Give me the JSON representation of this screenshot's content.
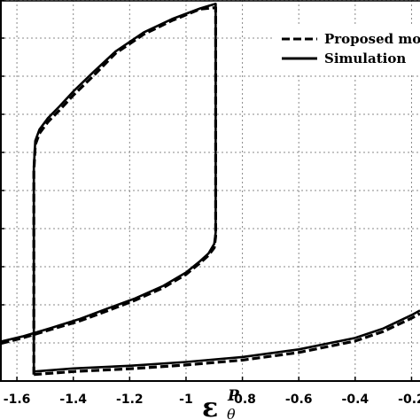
{
  "chart_data": {
    "type": "line",
    "title": "",
    "xlabel": {
      "symbol": "ε",
      "superscript": "P",
      "subscript": "θ"
    },
    "ylabel": "",
    "xlim": [
      -1.66,
      -0.17
    ],
    "ylim": [
      0,
      1
    ],
    "x_ticks": [
      -1.6,
      -1.4,
      -1.2,
      -1,
      -0.8,
      -0.6,
      -0.4,
      -0.2
    ],
    "x_tick_labels": [
      "-1.6",
      "-1.4",
      "-1.2",
      "-1",
      "-0.8",
      "-0.6",
      "-0.4",
      "-0.2"
    ],
    "y_ticks": [
      0.0,
      0.1,
      0.2,
      0.3,
      0.4,
      0.5,
      0.6,
      0.7,
      0.8,
      0.9,
      1.0
    ],
    "grid": true,
    "legend_position": "top-right",
    "series": [
      {
        "name": "Proposed mo",
        "style": "dashed",
        "x": [
          -1.54,
          -1.54,
          -1.535,
          -1.52,
          -1.49,
          -1.45,
          -1.4,
          -1.33,
          -1.25,
          -1.15,
          -1.05,
          -0.95,
          -0.895,
          -0.895,
          -0.9,
          -0.92,
          -0.95,
          -1.0,
          -1.08,
          -1.18,
          -1.28,
          -1.38,
          -1.48,
          -1.58,
          -1.66
        ],
        "y": [
          0.017,
          0.55,
          0.62,
          0.65,
          0.68,
          0.71,
          0.75,
          0.8,
          0.86,
          0.91,
          0.946,
          0.976,
          0.98,
          0.38,
          0.35,
          0.33,
          0.31,
          0.28,
          0.245,
          0.212,
          0.184,
          0.157,
          0.135,
          0.113,
          0.098
        ]
      },
      {
        "name": "Simulation",
        "style": "solid",
        "x": [
          -1.54,
          -1.54,
          -1.535,
          -1.52,
          -1.49,
          -1.45,
          -1.4,
          -1.33,
          -1.25,
          -1.15,
          -1.05,
          -0.95,
          -0.895,
          -0.895,
          -0.9,
          -0.92,
          -0.95,
          -1.0,
          -1.08,
          -1.18,
          -1.28,
          -1.38,
          -1.48,
          -1.58,
          -1.66
        ],
        "y": [
          0.025,
          0.56,
          0.63,
          0.66,
          0.69,
          0.72,
          0.76,
          0.81,
          0.865,
          0.915,
          0.95,
          0.978,
          0.99,
          0.39,
          0.36,
          0.335,
          0.315,
          0.285,
          0.25,
          0.217,
          0.19,
          0.162,
          0.139,
          0.117,
          0.103
        ]
      },
      {
        "name": "",
        "style": "dashed",
        "x": [
          -1.54,
          -1.4,
          -1.2,
          -1.0,
          -0.8,
          -0.6,
          -0.4,
          -0.3,
          -0.2,
          -0.17
        ],
        "y": [
          0.017,
          0.025,
          0.032,
          0.042,
          0.055,
          0.075,
          0.105,
          0.13,
          0.165,
          0.177
        ]
      },
      {
        "name": "",
        "style": "solid",
        "x": [
          -1.54,
          -1.4,
          -1.2,
          -1.0,
          -0.8,
          -0.6,
          -0.4,
          -0.3,
          -0.2,
          -0.17
        ],
        "y": [
          0.025,
          0.033,
          0.04,
          0.05,
          0.063,
          0.083,
          0.113,
          0.138,
          0.173,
          0.185
        ]
      }
    ],
    "legend": [
      {
        "label": "Proposed mo",
        "style": "dashed"
      },
      {
        "label": "Simulation",
        "style": "solid"
      }
    ]
  }
}
